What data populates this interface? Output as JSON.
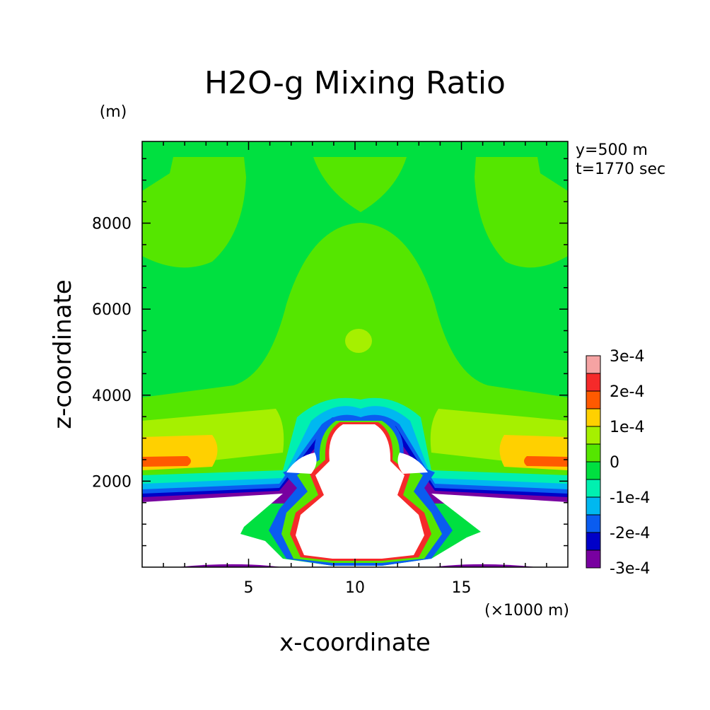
{
  "chart_data": {
    "type": "heatmap",
    "title": "H2O-g Mixing Ratio",
    "xlabel": "x-coordinate",
    "ylabel": "z-coordinate",
    "x_unit": "(×1000 m)",
    "y_unit": "(m)",
    "annotations": [
      "y=500 m",
      "t=1770 sec"
    ],
    "xlim": [
      0,
      20
    ],
    "ylim": [
      0,
      9900
    ],
    "x_ticks": [
      5,
      10,
      15
    ],
    "y_ticks": [
      2000,
      4000,
      6000,
      8000
    ],
    "colorbar": {
      "levels": [
        "3e-4",
        "2e-4",
        "1e-4",
        "0",
        "-1e-4",
        "-2e-4",
        "-3e-4"
      ],
      "colors": [
        "#f5a3a3",
        "#f52a2a",
        "#ff5a00",
        "#ffd000",
        "#a6f000",
        "#55e600",
        "#00e040",
        "#00f0b0",
        "#00b8f0",
        "#0a5cf0",
        "#0000c8",
        "#7800a0"
      ]
    }
  }
}
